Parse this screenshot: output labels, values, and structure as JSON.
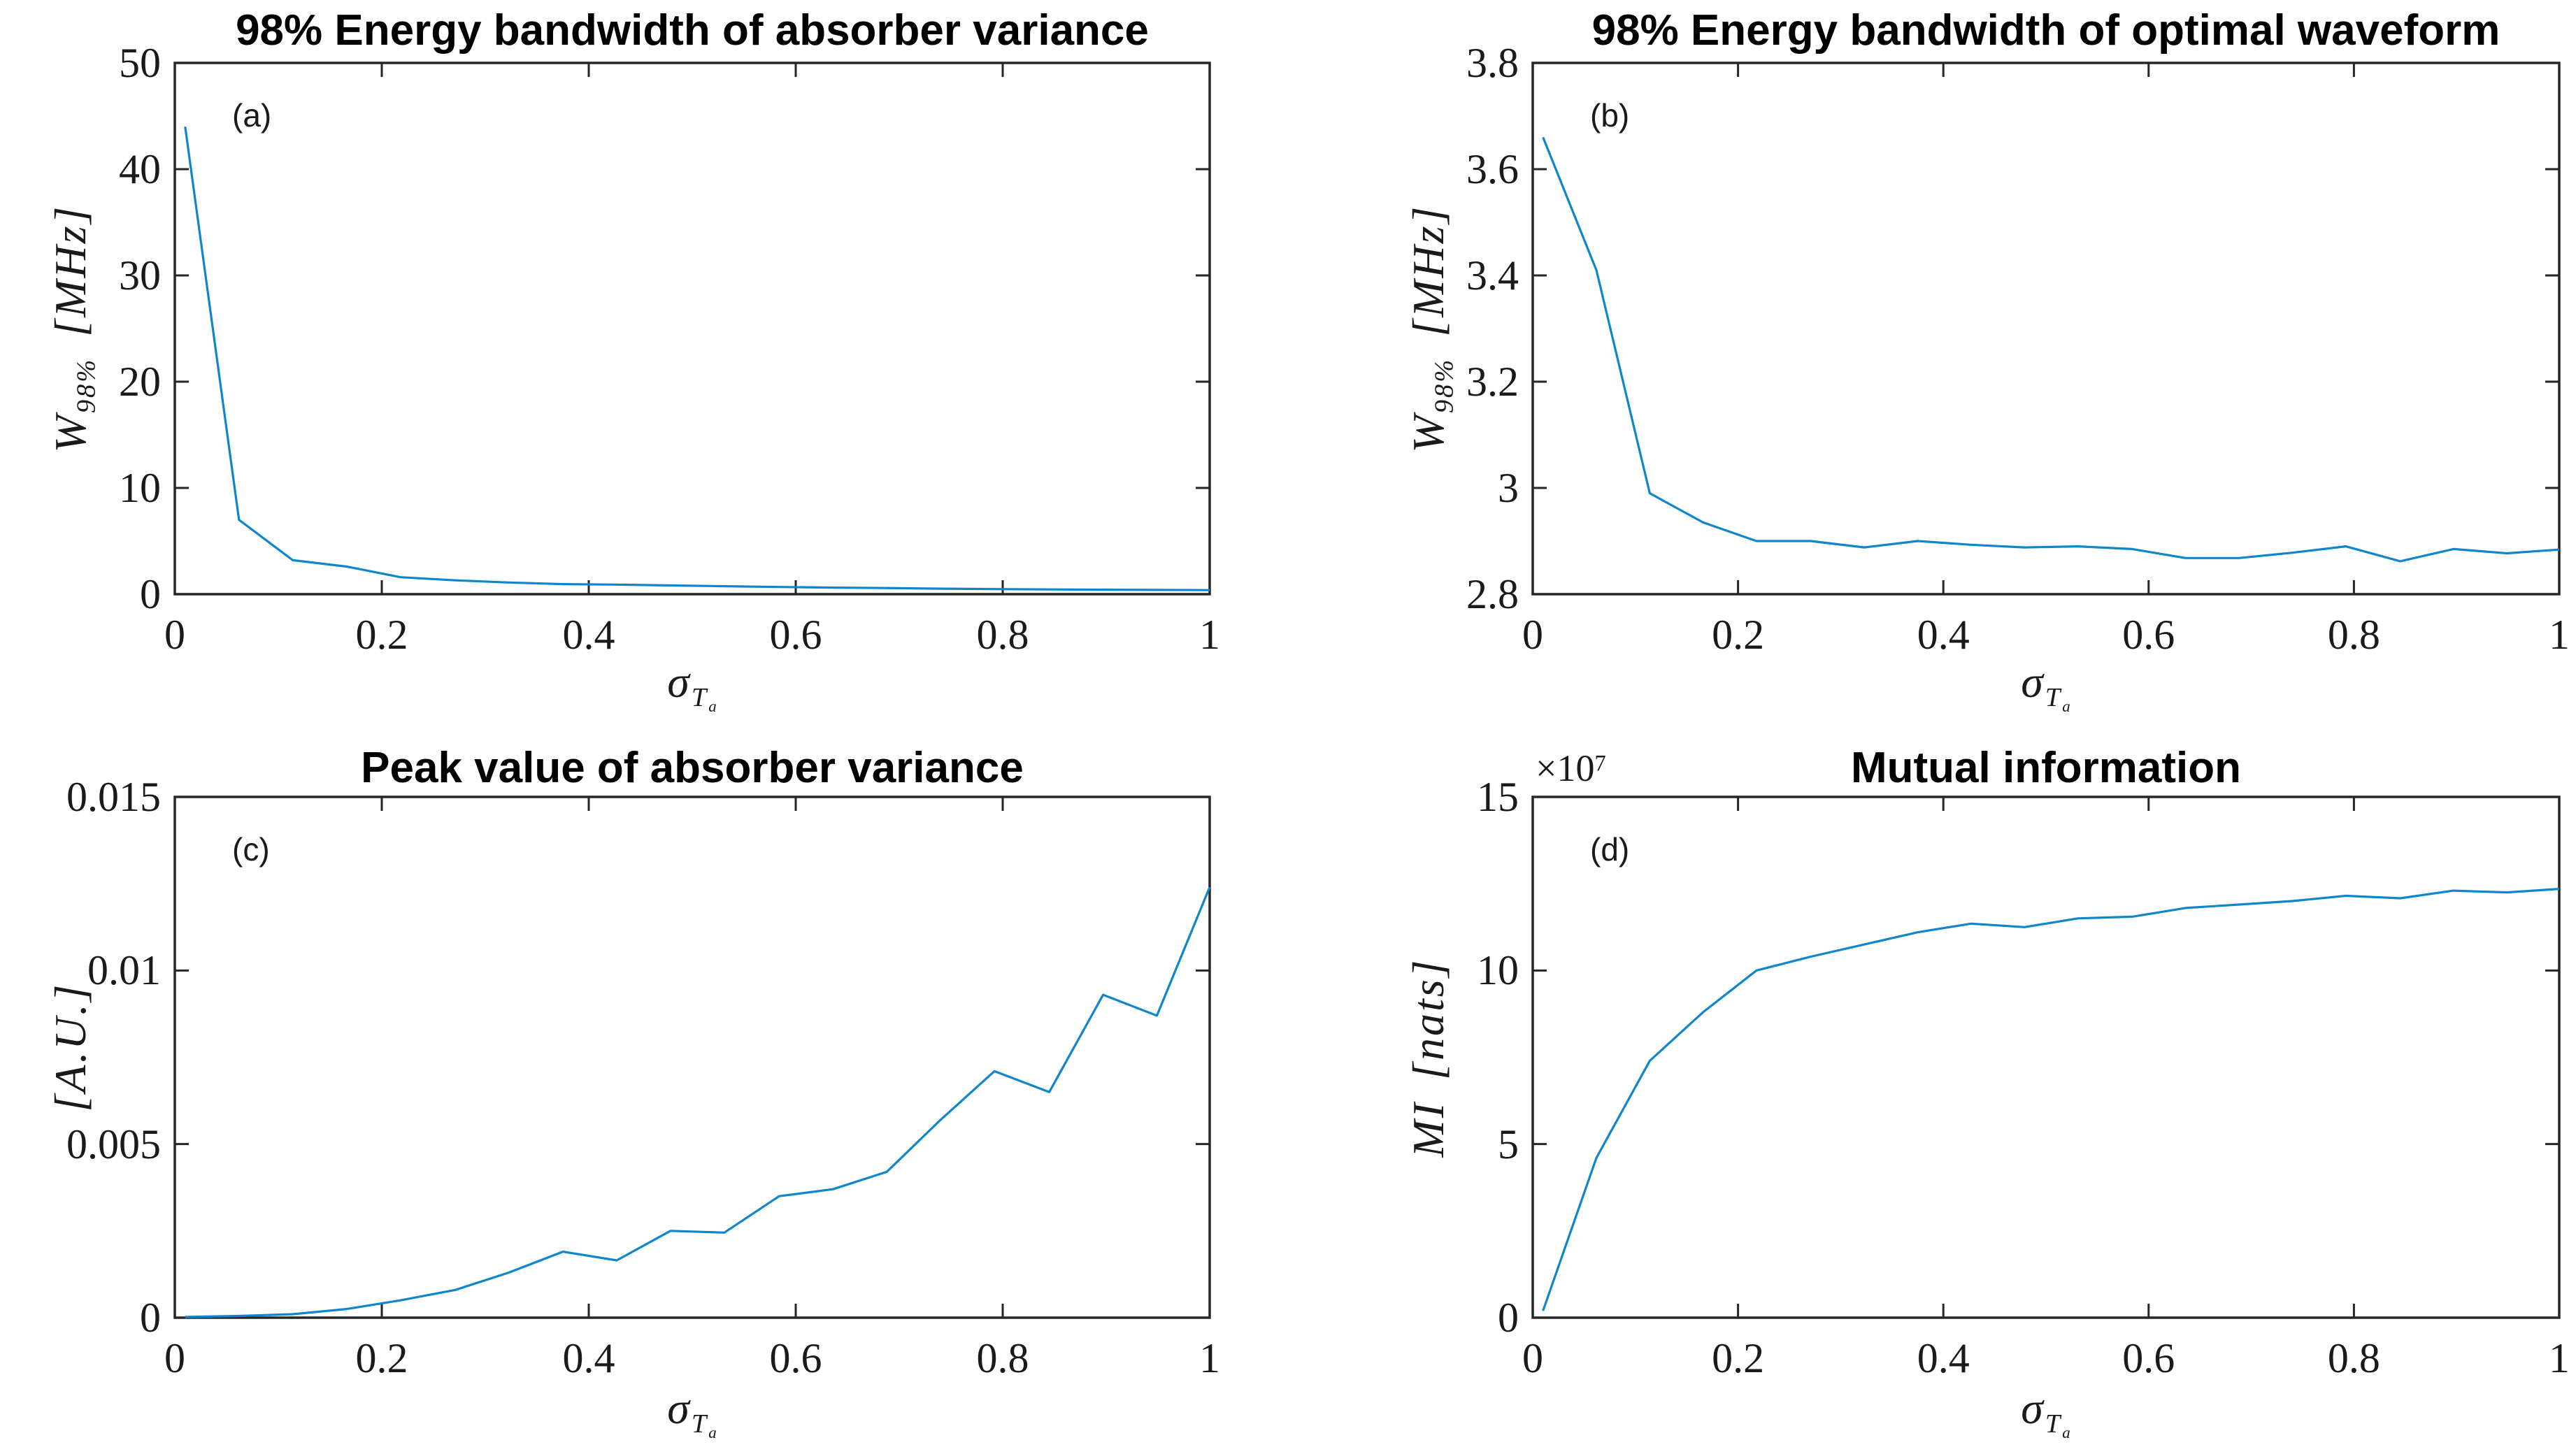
{
  "figure": {
    "background": "#FFFFFF",
    "line_color": "#0E86CC",
    "axis_color": "#262626",
    "text_color": "#1A1A1A",
    "title_color": "#000000"
  },
  "xlabel": {
    "sigma": "σ",
    "sub_main": "T",
    "sub_sub": "a"
  },
  "chart_data": [
    {
      "type": "line",
      "panel_label": "(a)",
      "title": "98% Energy bandwidth of absorber variance",
      "ylabel": {
        "main": "W",
        "sub": "98%",
        "unit": "[MHz]"
      },
      "xlim": [
        0,
        1
      ],
      "ylim": [
        0,
        50
      ],
      "grid": false,
      "legend": false,
      "xticks": [
        "0",
        "0.2",
        "0.4",
        "0.6",
        "0.8",
        "1"
      ],
      "xtick_values": [
        0,
        0.2,
        0.4,
        0.6,
        0.8,
        1
      ],
      "yticks": [
        "0",
        "10",
        "20",
        "30",
        "40",
        "50"
      ],
      "ytick_values": [
        0,
        10,
        20,
        30,
        40,
        50
      ],
      "x": [
        0.01,
        0.062,
        0.114,
        0.166,
        0.218,
        0.271,
        0.323,
        0.375,
        0.427,
        0.479,
        0.531,
        0.584,
        0.636,
        0.688,
        0.74,
        0.792,
        0.845,
        0.897,
        0.949,
        1.0
      ],
      "y": [
        44,
        7.0,
        3.2,
        2.6,
        1.6,
        1.3,
        1.1,
        0.95,
        0.9,
        0.82,
        0.75,
        0.68,
        0.62,
        0.58,
        0.52,
        0.48,
        0.45,
        0.42,
        0.4,
        0.38
      ]
    },
    {
      "type": "line",
      "panel_label": "(b)",
      "title": "98% Energy bandwidth of optimal waveform",
      "ylabel": {
        "main": "W",
        "sub": "98%",
        "unit": "[MHz]"
      },
      "xlim": [
        0,
        1
      ],
      "ylim": [
        2.8,
        3.8
      ],
      "grid": false,
      "legend": false,
      "xticks": [
        "0",
        "0.2",
        "0.4",
        "0.6",
        "0.8",
        "1"
      ],
      "xtick_values": [
        0,
        0.2,
        0.4,
        0.6,
        0.8,
        1
      ],
      "yticks": [
        "2.8",
        "3",
        "3.2",
        "3.4",
        "3.6",
        "3.8"
      ],
      "ytick_values": [
        2.8,
        3.0,
        3.2,
        3.4,
        3.6,
        3.8
      ],
      "x": [
        0.01,
        0.062,
        0.114,
        0.166,
        0.218,
        0.271,
        0.323,
        0.375,
        0.427,
        0.479,
        0.531,
        0.584,
        0.636,
        0.688,
        0.74,
        0.792,
        0.845,
        0.897,
        0.949,
        1.0
      ],
      "y": [
        3.66,
        3.41,
        2.99,
        2.935,
        2.9,
        2.9,
        2.888,
        2.9,
        2.893,
        2.888,
        2.89,
        2.885,
        2.868,
        2.868,
        2.878,
        2.89,
        2.862,
        2.885,
        2.877,
        2.884
      ]
    },
    {
      "type": "line",
      "panel_label": "(c)",
      "title": "Peak value of absorber variance",
      "ylabel": {
        "main": "",
        "sub": "",
        "unit": "[A.U.]"
      },
      "xlim": [
        0,
        1
      ],
      "ylim": [
        0,
        0.015
      ],
      "grid": false,
      "legend": false,
      "xticks": [
        "0",
        "0.2",
        "0.4",
        "0.6",
        "0.8",
        "1"
      ],
      "xtick_values": [
        0,
        0.2,
        0.4,
        0.6,
        0.8,
        1
      ],
      "yticks": [
        "0",
        "0.005",
        "0.01",
        "0.015"
      ],
      "ytick_values": [
        0,
        0.005,
        0.01,
        0.015
      ],
      "x": [
        0.01,
        0.062,
        0.114,
        0.166,
        0.218,
        0.271,
        0.323,
        0.375,
        0.427,
        0.479,
        0.531,
        0.584,
        0.636,
        0.688,
        0.74,
        0.792,
        0.845,
        0.897,
        0.949,
        1.0
      ],
      "y": [
        2e-05,
        5e-05,
        0.0001,
        0.00025,
        0.0005,
        0.0008,
        0.0013,
        0.0019,
        0.00165,
        0.0025,
        0.00245,
        0.0035,
        0.0037,
        0.0042,
        0.0057,
        0.0071,
        0.0065,
        0.0093,
        0.0087,
        0.0124
      ]
    },
    {
      "type": "line",
      "panel_label": "(d)",
      "title": "Mutual information",
      "ylabel": {
        "main": "MI",
        "sub": "",
        "unit": "[nats]"
      },
      "exponent_prefix": "×10",
      "exponent_power": "7",
      "xlim": [
        0,
        1
      ],
      "ylim": [
        0,
        15
      ],
      "grid": false,
      "legend": false,
      "xticks": [
        "0",
        "0.2",
        "0.4",
        "0.6",
        "0.8",
        "1"
      ],
      "xtick_values": [
        0,
        0.2,
        0.4,
        0.6,
        0.8,
        1
      ],
      "yticks": [
        "0",
        "5",
        "10",
        "15"
      ],
      "ytick_values": [
        0,
        5,
        10,
        15
      ],
      "x": [
        0.01,
        0.062,
        0.114,
        0.166,
        0.218,
        0.271,
        0.323,
        0.375,
        0.427,
        0.479,
        0.531,
        0.584,
        0.636,
        0.688,
        0.74,
        0.792,
        0.845,
        0.897,
        0.949,
        1.0
      ],
      "y": [
        0.2,
        4.6,
        7.4,
        8.8,
        10.0,
        10.4,
        10.75,
        11.1,
        11.35,
        11.25,
        11.5,
        11.55,
        11.8,
        11.9,
        12.0,
        12.15,
        12.08,
        12.3,
        12.25,
        12.35
      ]
    }
  ]
}
